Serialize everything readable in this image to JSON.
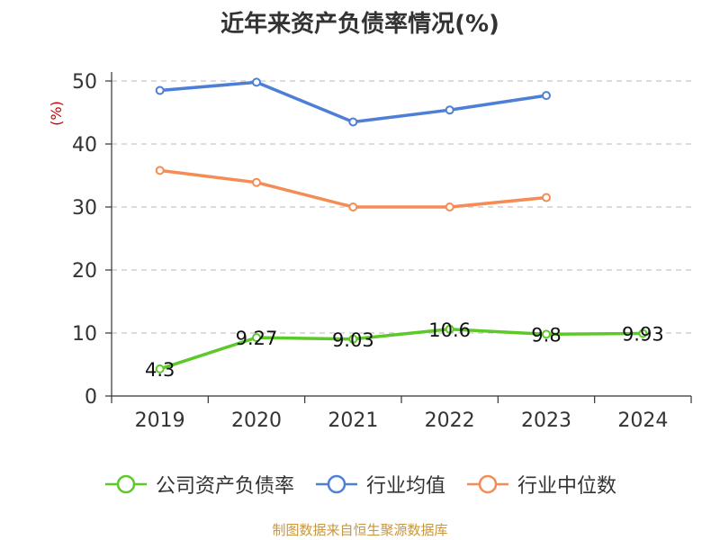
{
  "title": "近年来资产负债率情况(%)",
  "source": "制图数据来自恒生聚源数据库",
  "chart_data": {
    "type": "line",
    "title": "近年来资产负债率情况(%)",
    "ylabel": "(%)",
    "xlabel": "",
    "categories": [
      "2019",
      "2020",
      "2021",
      "2022",
      "2023",
      "2024"
    ],
    "ylim": [
      0,
      50
    ],
    "yticks": [
      0,
      10,
      20,
      30,
      40,
      50
    ],
    "grid": true,
    "legend": "bottom",
    "series": [
      {
        "name": "公司资产负债率",
        "color": "#5cc928",
        "values": [
          4.3,
          9.27,
          9.03,
          10.6,
          9.8,
          9.93
        ],
        "labels": [
          "4.3",
          "9.27",
          "9.03",
          "10.6",
          "9.8",
          "9.93"
        ]
      },
      {
        "name": "行业均值",
        "color": "#4e7fd6",
        "values": [
          48.5,
          49.8,
          43.5,
          45.4,
          47.7,
          null
        ]
      },
      {
        "name": "行业中位数",
        "color": "#f58c55",
        "values": [
          35.8,
          33.9,
          30.0,
          30.0,
          31.5,
          null
        ]
      }
    ]
  }
}
